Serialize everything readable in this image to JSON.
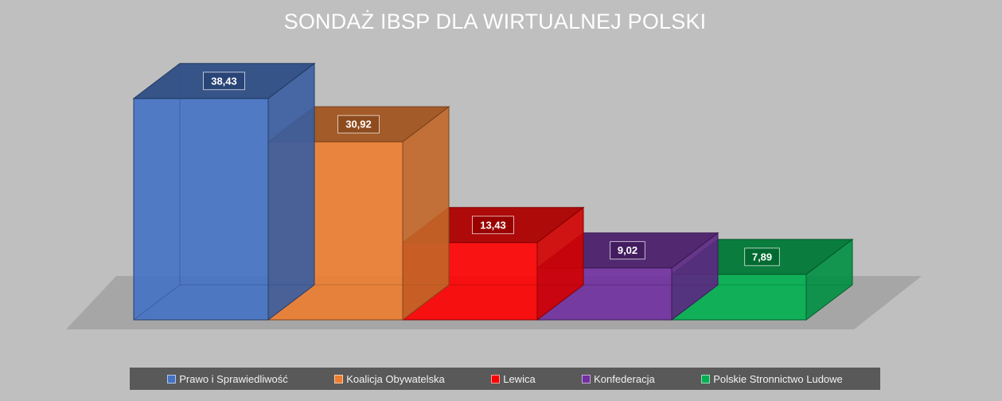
{
  "chart_data": {
    "type": "bar",
    "title": "SONDAŻ IBSP DLA WIRTUALNEJ POLSKI",
    "categories": [
      "Prawo i Sprawiedliwość",
      "Koalicja Obywatelska",
      "Lewica",
      "Konfederacja",
      "Polskie Stronnictwo Ludowe"
    ],
    "values": [
      38.43,
      30.92,
      13.43,
      9.02,
      7.89
    ],
    "data_labels": [
      "38,43",
      "30,92",
      "13,43",
      "9,02",
      "7,89"
    ],
    "colors": [
      "#4472c4",
      "#ed7d31",
      "#ff0000",
      "#7030a0",
      "#00b050"
    ],
    "style": "3d-column",
    "legend_position": "bottom",
    "grid": false
  }
}
